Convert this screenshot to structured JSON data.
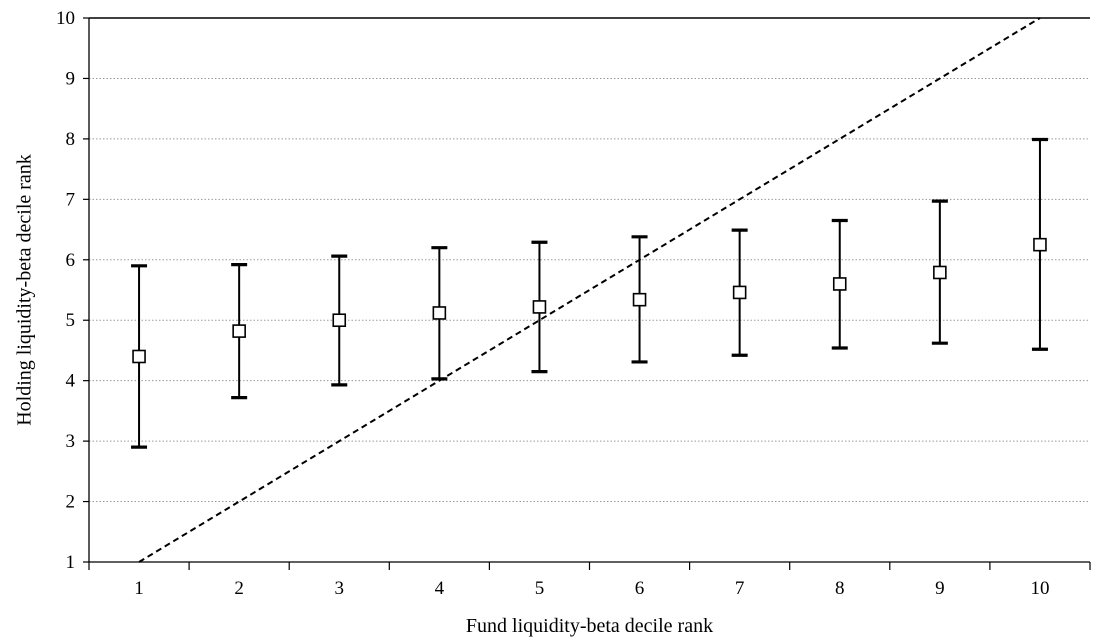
{
  "chart_data": {
    "type": "scatter",
    "title": "",
    "xlabel": "Fund liquidity-beta decile rank",
    "ylabel": "Holding liquidity-beta decile rank",
    "x_categories": [
      "1",
      "2",
      "3",
      "4",
      "5",
      "6",
      "7",
      "8",
      "9",
      "10"
    ],
    "y_ticks": [
      "1",
      "2",
      "3",
      "4",
      "5",
      "6",
      "7",
      "8",
      "9",
      "10"
    ],
    "ylim": [
      1,
      10
    ],
    "grid": "horizontal dotted",
    "marker": "open-square",
    "points": [
      {
        "x": 1,
        "y": 4.4,
        "low": 2.9,
        "high": 5.9
      },
      {
        "x": 2,
        "y": 4.82,
        "low": 3.72,
        "high": 5.92
      },
      {
        "x": 3,
        "y": 5.0,
        "low": 3.93,
        "high": 6.06
      },
      {
        "x": 4,
        "y": 5.12,
        "low": 4.03,
        "high": 6.2
      },
      {
        "x": 5,
        "y": 5.22,
        "low": 4.15,
        "high": 6.29
      },
      {
        "x": 6,
        "y": 5.34,
        "low": 4.31,
        "high": 6.38
      },
      {
        "x": 7,
        "y": 5.46,
        "low": 4.42,
        "high": 6.49
      },
      {
        "x": 8,
        "y": 5.6,
        "low": 4.54,
        "high": 6.65
      },
      {
        "x": 9,
        "y": 5.79,
        "low": 4.62,
        "high": 6.97
      },
      {
        "x": 10,
        "y": 6.25,
        "low": 4.52,
        "high": 7.99
      }
    ],
    "reference_line": {
      "style": "dashed",
      "from": [
        1,
        1
      ],
      "to": [
        10,
        10
      ]
    }
  }
}
